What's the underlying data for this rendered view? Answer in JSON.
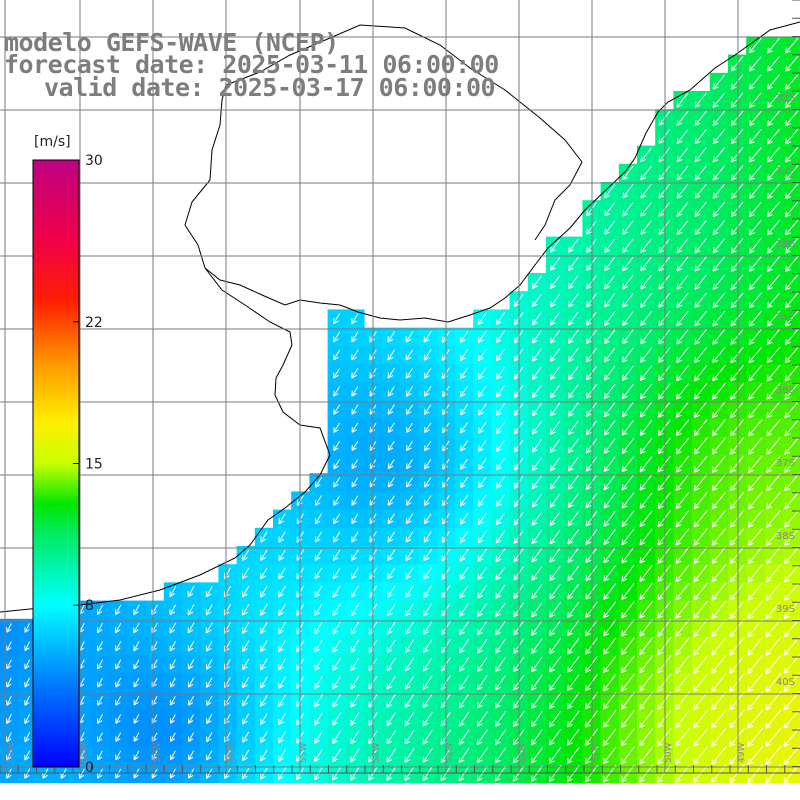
{
  "title": {
    "model": "modelo GEFS-WAVE (NCEP)",
    "forecast": "forecast date: 2025-03-11 06:00:00",
    "valid": "valid date: 2025-03-17 06:00:00"
  },
  "colorbar": {
    "unit": "[m/s]",
    "ticks": [
      {
        "label": "30",
        "value": 30
      },
      {
        "label": "22",
        "value": 22
      },
      {
        "label": "15",
        "value": 15
      },
      {
        "label": "8",
        "value": 8
      },
      {
        "label": "0",
        "value": 0
      }
    ],
    "min": 0,
    "max": 30
  },
  "grid": {
    "lat_labels": [
      "32S",
      "33S",
      "34S",
      "35S",
      "36S",
      "37S",
      "38S",
      "39S",
      "40S"
    ],
    "lon_labels": [
      "59W",
      "58W",
      "57W",
      "56W",
      "55W",
      "54W",
      "53W",
      "52W",
      "51W",
      "50W",
      "49W"
    ]
  },
  "colors": {
    "land": "#ffffff",
    "coastline": "#000000",
    "gridline": "#7a7a7a",
    "arrows": "#ffffff",
    "title_text": "#7d7d7d"
  }
}
